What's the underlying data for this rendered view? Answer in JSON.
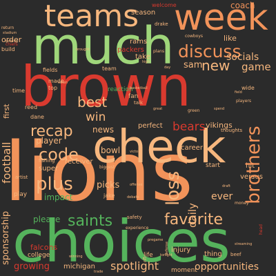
{
  "palette": {
    "background": "#2b2b2b",
    "red": "#d93a2f",
    "orange": "#f2935a",
    "green": "#55b35c",
    "lightgreen": "#9fd67a",
    "peach": "#f7b77e",
    "darkred": "#b7322c"
  },
  "words": {
    "lions": "lions",
    "choices": "choices",
    "brown": "brown",
    "much": "much",
    "check": "check",
    "teams": "teams",
    "week": "week",
    "favorite": "favorite",
    "saints": "saints",
    "plus": "plus",
    "loss": "loss",
    "brothers": "brothers",
    "discuss": "discuss",
    "recap": "recap",
    "code": "code",
    "bears": "bears",
    "win": "win",
    "best": "best",
    "socials": "socials",
    "new": "new",
    "game": "game",
    "spotlight": "spotlight",
    "opportunities": "opportunities",
    "football": "football",
    "sponsorship": "sponsorship",
    "daily": "daily",
    "growing": "growing",
    "please": "please",
    "coach": "coach",
    "season": "season",
    "order": "order",
    "welcome": "welcome",
    "sam": "sam",
    "like": "like",
    "rams": "rams",
    "packers": "packers",
    "news": "news",
    "bowl": "bowl",
    "picks": "picks",
    "super": "super",
    "receiver": "receiver",
    "player": "player",
    "impact": "impact",
    "vikings": "vikings",
    "career": "career",
    "ever": "ever",
    "falcons": "falcons",
    "michigan": "michigan",
    "injury": "injury",
    "thing": "thing",
    "life": "life",
    "moment": "moment",
    "jake": "jake",
    "perfect": "perfect",
    "fan": "fan",
    "take": "take",
    "team": "team",
    "fields": "fields",
    "first": "first",
    "play": "play",
    "start": "start",
    "hit": "hit",
    "versus": "versus",
    "artist": "artist",
    "college": "college",
    "build": "build",
    "chiefs": "chiefs",
    "made": "made",
    "top": "top",
    "time": "time",
    "reed": "reed",
    "dane": "dane",
    "plans": "plans",
    "cowboys": "cowboys",
    "drake": "drake",
    "stadium": "stadium",
    "return": "return",
    "basketball": "basketball",
    "reaction": "reaction",
    "talk": "talk",
    "thoughts": "thoughts",
    "fishing": "fishing",
    "safety": "safety",
    "experience": "experience",
    "head": "head",
    "wide": "wide",
    "draft": "draft",
    "high": "high",
    "spend": "spend",
    "beef": "beef",
    "taken": "taken",
    "biggest": "biggest",
    "streaming": "streaming",
    "pregame": "pregame",
    "money": "money",
    "offense": "offense",
    "debate": "debate",
    "day": "day",
    "great": "great",
    "green": "green",
    "players": "players",
    "tonight": "tonight",
    "winning": "winning",
    "defense": "defense",
    "trade": "trade",
    "nfl": "nfl",
    "victory": "victory",
    "brought": "brought",
    "getting": "getting",
    "field": "field"
  }
}
